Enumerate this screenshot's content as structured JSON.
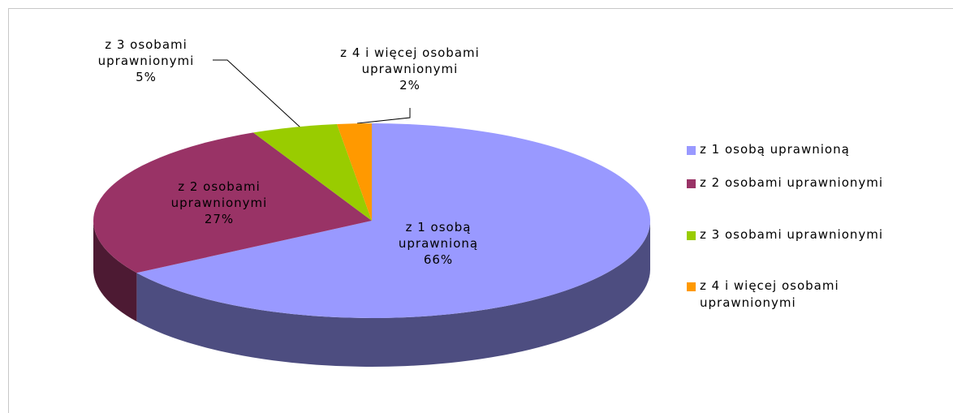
{
  "chart_data": {
    "type": "pie",
    "categories": [
      "z 1 osobą uprawnioną",
      "z 2 osobami uprawnionymi",
      "z 3 osobami uprawnionymi",
      "z 4 i więcej osobami uprawnionymi"
    ],
    "values": [
      66,
      27,
      5,
      2
    ],
    "value_labels": [
      "66%",
      "27%",
      "5%",
      "2%"
    ],
    "colors": [
      "#9999ff",
      "#993366",
      "#99cc00",
      "#ff9900"
    ],
    "legend": "right"
  }
}
